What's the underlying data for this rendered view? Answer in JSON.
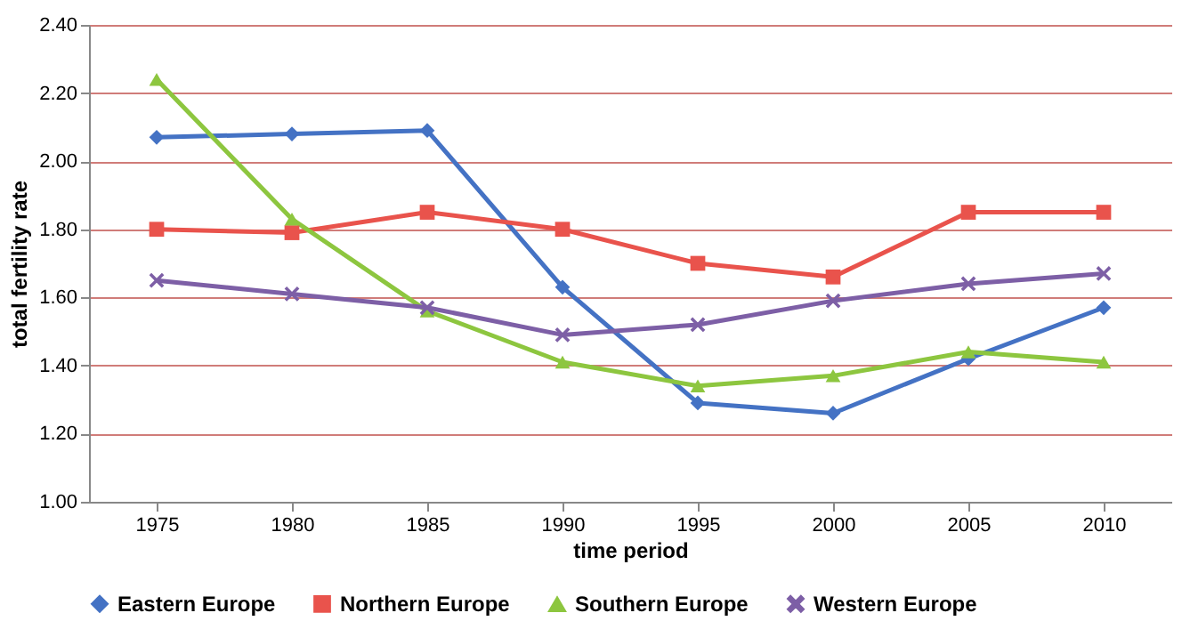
{
  "chart_data": {
    "type": "line",
    "xlabel": "time period",
    "ylabel": "total fertility rate",
    "categories": [
      "1975",
      "1980",
      "1985",
      "1990",
      "1995",
      "2000",
      "2005",
      "2010"
    ],
    "series": [
      {
        "name": "Eastern Europe",
        "color": "#4472c4",
        "marker": "diamond",
        "values": [
          2.07,
          2.08,
          2.09,
          1.63,
          1.29,
          1.26,
          1.42,
          1.57
        ]
      },
      {
        "name": "Northern Europe",
        "color": "#e9534c",
        "marker": "square",
        "values": [
          1.8,
          1.79,
          1.85,
          1.8,
          1.7,
          1.66,
          1.85,
          1.85
        ]
      },
      {
        "name": "Southern Europe",
        "color": "#8dc63f",
        "marker": "triangle",
        "values": [
          2.24,
          1.83,
          1.56,
          1.41,
          1.34,
          1.37,
          1.44,
          1.41
        ]
      },
      {
        "name": "Western Europe",
        "color": "#7d5fa6",
        "marker": "cross",
        "values": [
          1.65,
          1.61,
          1.57,
          1.49,
          1.52,
          1.59,
          1.64,
          1.67
        ]
      }
    ],
    "ylim": [
      1.0,
      2.4
    ],
    "yticks": [
      {
        "value": 1.0,
        "label": "1.00"
      },
      {
        "value": 1.2,
        "label": "1.20"
      },
      {
        "value": 1.4,
        "label": "1.40"
      },
      {
        "value": 1.6,
        "label": "1.60"
      },
      {
        "value": 1.8,
        "label": "1.80"
      },
      {
        "value": 2.0,
        "label": "2.00"
      },
      {
        "value": 2.2,
        "label": "2.20"
      },
      {
        "value": 2.4,
        "label": "2.40"
      }
    ],
    "grid": "y",
    "legend": "bottom",
    "line_style": "solid"
  }
}
